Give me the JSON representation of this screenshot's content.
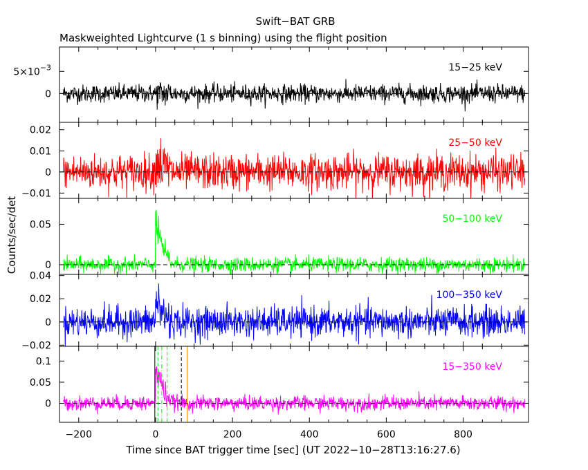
{
  "chart_data": {
    "type": "line",
    "title": "Swift−BAT GRB",
    "subtitle": "Maskweighted Lightcurve (1 s binning) using the flight position",
    "xlabel": "Time since BAT trigger time [sec] (UT 2022−10−28T13:16:27.6)",
    "ylabel": "Counts/sec/det",
    "xlim": [
      -250,
      970
    ],
    "x_ticks": [
      -200,
      0,
      200,
      400,
      600,
      800
    ],
    "x_tick_labels": [
      "−200",
      "0",
      "200",
      "400",
      "600",
      "800"
    ],
    "data_x_range": [
      -240,
      960
    ],
    "panels": [
      {
        "band": "15−25 keV",
        "color": "#000000",
        "ylim": [
          -0.0065,
          0.0105
        ],
        "y_ticks": [
          0,
          0.005
        ],
        "y_tick_labels": [
          "0",
          "5×10"
        ],
        "y_tick_exp": [
          "",
          "−3"
        ],
        "noise_sigma": 0.001,
        "peak": 0.0,
        "decay_s": 10
      },
      {
        "band": "25−50 keV",
        "color": "#ff0000",
        "ylim": [
          -0.0125,
          0.0235
        ],
        "y_ticks": [
          -0.01,
          0,
          0.01,
          0.02
        ],
        "y_tick_labels": [
          "−0.01",
          "0",
          "0.01",
          "0.02"
        ],
        "noise_sigma": 0.0042,
        "peak": 0.007,
        "decay_s": 10
      },
      {
        "band": "50−100 keV",
        "color": "#00ff00",
        "ylim": [
          -0.012,
          0.082
        ],
        "y_ticks": [
          0,
          0.05
        ],
        "y_tick_labels": [
          "0",
          "0.05"
        ],
        "noise_sigma": 0.0045,
        "peak": 0.055,
        "decay_s": 12
      },
      {
        "band": "100−350 keV",
        "color": "#0000ff",
        "ylim": [
          -0.021,
          0.041
        ],
        "y_ticks": [
          -0.02,
          0,
          0.02,
          0.04
        ],
        "y_tick_labels": [
          "−0.02",
          "0",
          "0.02",
          "0.04"
        ],
        "noise_sigma": 0.0065,
        "peak": 0.02,
        "decay_s": 12
      },
      {
        "band": "15−350 keV",
        "color": "#ff00ff",
        "ylim": [
          -0.045,
          0.135
        ],
        "y_ticks": [
          0,
          0.05,
          0.1
        ],
        "y_tick_labels": [
          "0",
          "0.05",
          "0.1"
        ],
        "noise_sigma": 0.0085,
        "peak": 0.085,
        "decay_s": 14
      }
    ],
    "time_markers": [
      {
        "x": -2,
        "color": "#000000",
        "dash": "solid"
      },
      {
        "x": 6,
        "color": "#00ff00",
        "dash": "dashed"
      },
      {
        "x": 16,
        "color": "#00ff00",
        "dash": "dashdot"
      },
      {
        "x": 30,
        "color": "#00ff00",
        "dash": "dashed"
      },
      {
        "x": 67,
        "color": "#000000",
        "dash": "dashed"
      },
      {
        "x": 82,
        "color": "#ff8c00",
        "dash": "solid"
      }
    ],
    "zero_line": true,
    "legend": "none"
  }
}
